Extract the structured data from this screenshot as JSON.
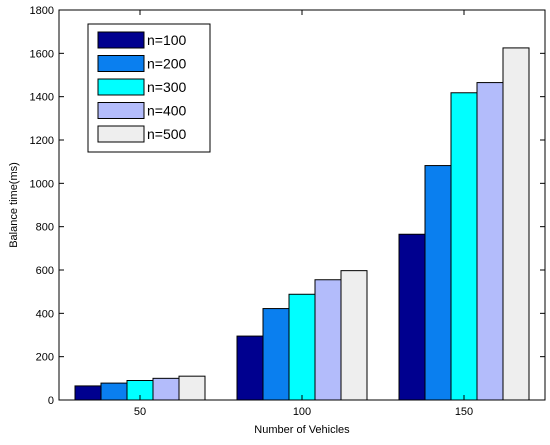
{
  "chart_data": {
    "type": "bar",
    "title": "",
    "xlabel": "Number of Vehicles",
    "ylabel": "Balance time(ms)",
    "categories": [
      "50",
      "100",
      "150"
    ],
    "ylim": [
      0,
      1800
    ],
    "yticks": [
      0,
      200,
      400,
      600,
      800,
      1000,
      1200,
      1400,
      1600,
      1800
    ],
    "grid": false,
    "legend_position": "top-left",
    "series": [
      {
        "name": "n=100",
        "color": "#00008F",
        "values": [
          65,
          295,
          765
        ]
      },
      {
        "name": "n=200",
        "color": "#0A7FEF",
        "values": [
          78,
          422,
          1082
        ]
      },
      {
        "name": "n=300",
        "color": "#00FFFF",
        "values": [
          90,
          488,
          1418
        ]
      },
      {
        "name": "n=400",
        "color": "#B3BCFB",
        "values": [
          100,
          555,
          1465
        ]
      },
      {
        "name": "n=500",
        "color": "#EEEEEE",
        "values": [
          110,
          597,
          1625
        ]
      }
    ]
  }
}
